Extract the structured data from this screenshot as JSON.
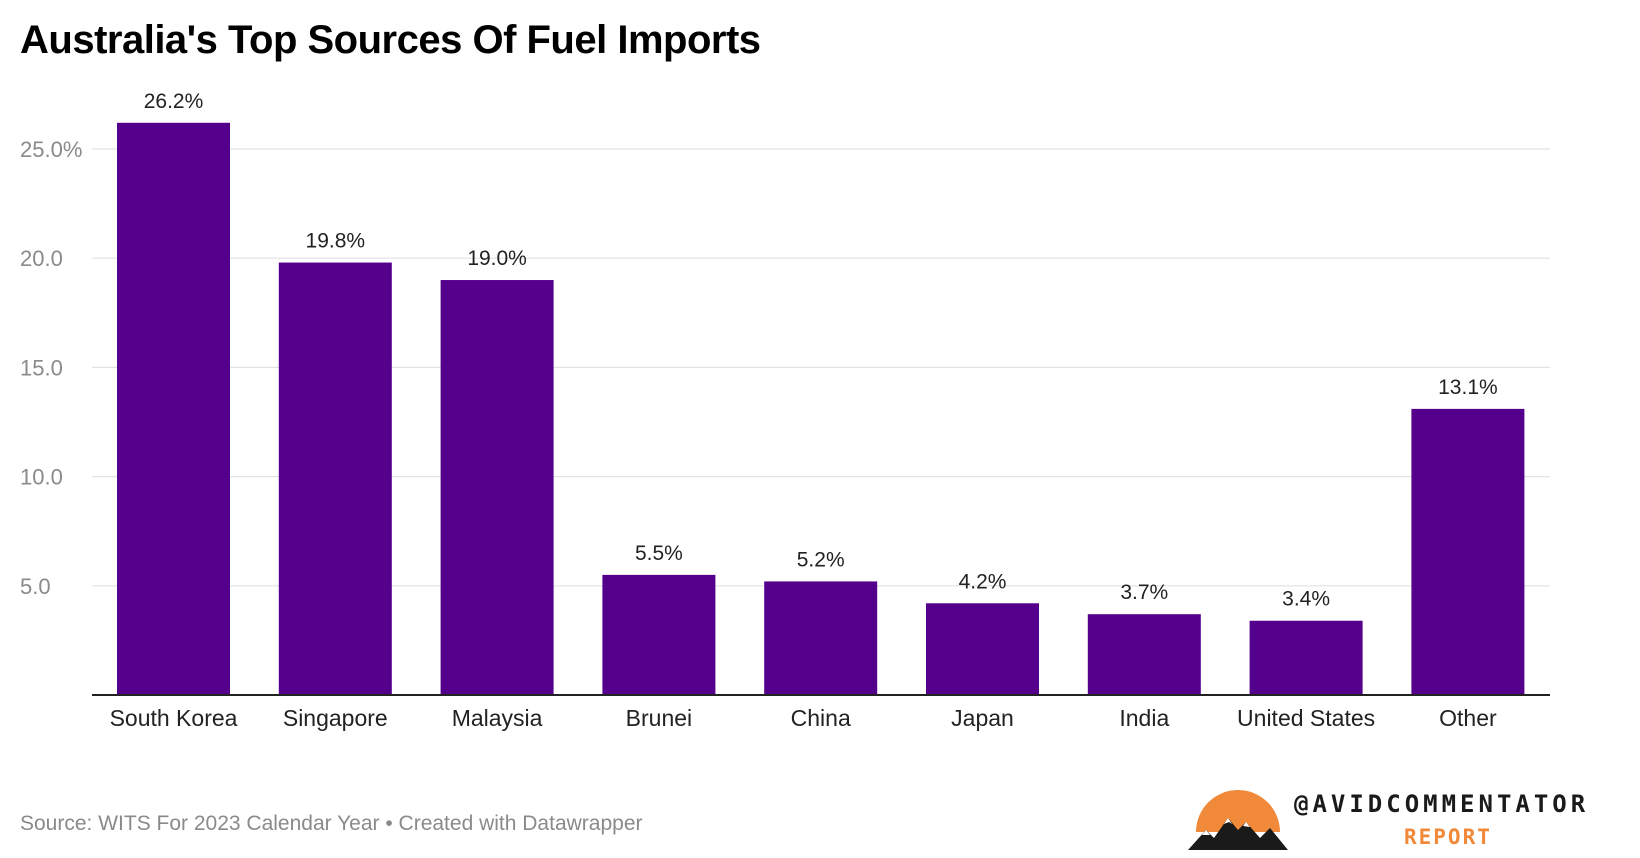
{
  "title": "Australia's Top Sources Of Fuel Imports",
  "source_note": "Source: WITS For 2023 Calendar Year • Created with Datawrapper",
  "brand": {
    "handle": "@AVIDCOMMENTATOR",
    "subtitle": "REPORT",
    "logo_icon": "mountain-sunset-icon",
    "logo_sun_color": "#f08a3a"
  },
  "colors": {
    "bar": "#55008c",
    "grid": "#e2e2e2",
    "axis": "#222222"
  },
  "chart_data": {
    "type": "bar",
    "title": "Australia's Top Sources Of Fuel Imports",
    "xlabel": "",
    "ylabel": "",
    "categories": [
      "South Korea",
      "Singapore",
      "Malaysia",
      "Brunei",
      "China",
      "Japan",
      "India",
      "United States",
      "Other"
    ],
    "values": [
      26.2,
      19.8,
      19.0,
      5.5,
      5.2,
      4.2,
      3.7,
      3.4,
      13.1
    ],
    "data_labels": [
      "26.2%",
      "19.8%",
      "19.0%",
      "5.5%",
      "5.2%",
      "4.2%",
      "3.7%",
      "3.4%",
      "13.1%"
    ],
    "y_ticks": [
      5,
      10,
      15,
      20,
      25
    ],
    "y_tick_labels": [
      "5.0",
      "10.0",
      "15.0",
      "20.0",
      "25.0%"
    ],
    "ylim": [
      0,
      27
    ],
    "grid": true,
    "legend": "none"
  }
}
